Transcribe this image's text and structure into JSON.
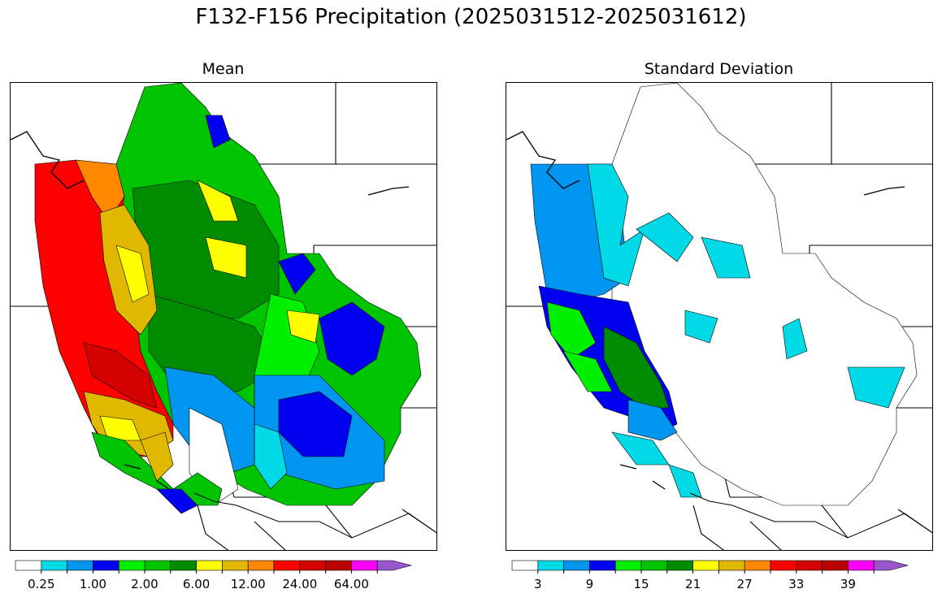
{
  "figure": {
    "title": "F132-F156 Precipitation (2025031512-2025031612)"
  },
  "panels": [
    {
      "title": "Mean",
      "colorbar": {
        "colors": [
          "#ffffff",
          "#00d9e6",
          "#0096f0",
          "#0000f0",
          "#00f000",
          "#00c400",
          "#008c00",
          "#ffff00",
          "#e0b800",
          "#ff8800",
          "#ff0000",
          "#d40000",
          "#b80000",
          "#ff00ff",
          "#9955cc"
        ],
        "extend": "max",
        "tick_labels": [
          "0.25",
          "1.00",
          "2.00",
          "6.00",
          "12.00",
          "24.00",
          "64.00"
        ]
      }
    },
    {
      "title": "Standard Deviation",
      "colorbar": {
        "colors": [
          "#ffffff",
          "#00d9e6",
          "#0096f0",
          "#0000f0",
          "#00f000",
          "#00c400",
          "#008c00",
          "#ffff00",
          "#e0b800",
          "#ff8800",
          "#ff0000",
          "#d40000",
          "#b80000",
          "#ff00ff",
          "#9955cc"
        ],
        "extend": "max",
        "tick_labels": [
          "3",
          "9",
          "15",
          "21",
          "27",
          "33",
          "39"
        ]
      }
    }
  ]
}
